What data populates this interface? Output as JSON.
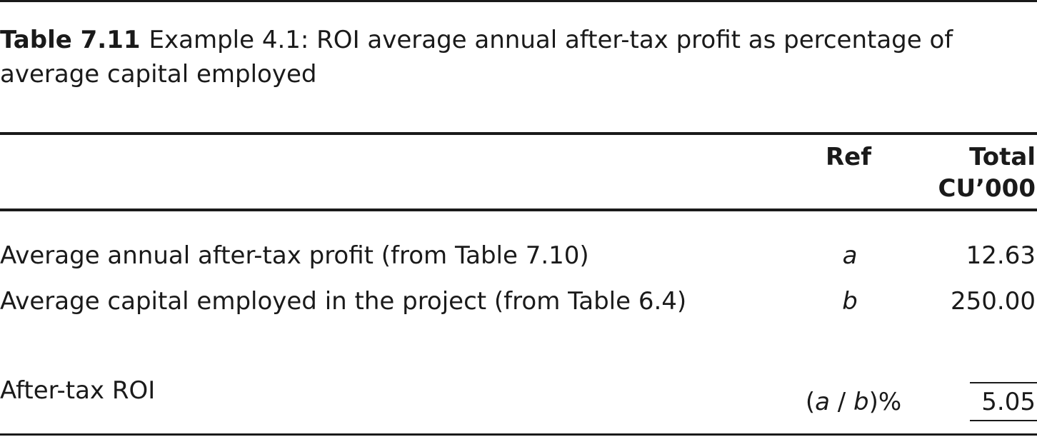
{
  "caption": {
    "label": "Table 7.11",
    "text": "Example 4.1: ROI average annual after-tax profit as percentage of average capital employed"
  },
  "header": {
    "ref": "Ref",
    "total_line1": "Total",
    "total_line2": "CU’000"
  },
  "rows": [
    {
      "label": "Average annual after-tax profit (from Table 7.10)",
      "ref": "a",
      "value": "12.63"
    },
    {
      "label": "Average capital employed in the project (from Table 6.4)",
      "ref": "b",
      "value": "250.00"
    }
  ],
  "result": {
    "label": "After-tax ROI",
    "ref_open": "(",
    "ref_a": "a",
    "ref_slash": " / ",
    "ref_b": "b",
    "ref_close": ")%",
    "value": "5.05"
  }
}
